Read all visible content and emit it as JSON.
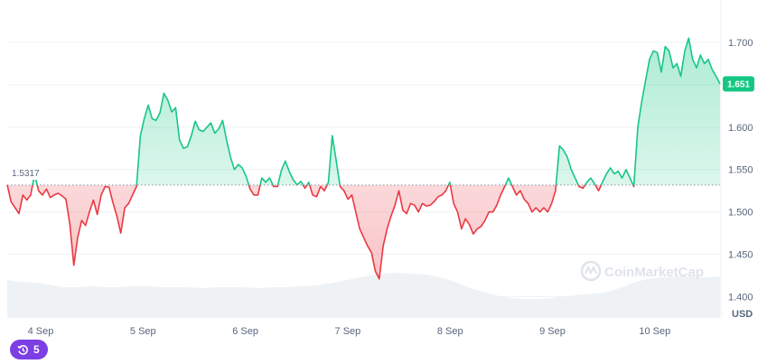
{
  "chart_data": {
    "type": "line",
    "x_labels": [
      "4 Sep",
      "5 Sep",
      "6 Sep",
      "7 Sep",
      "8 Sep",
      "9 Sep",
      "10 Sep"
    ],
    "y_ticks": [
      "1.700",
      "1.650",
      "1.600",
      "1.550",
      "1.500",
      "1.450",
      "1.400"
    ],
    "ylim": [
      1.375,
      1.75
    ],
    "reference_price": 1.5317,
    "reference_label": "1.5317",
    "current_price_label": "1.651",
    "currency_label": "USD",
    "above_color": "#16c784",
    "below_color": "#ea3943",
    "series": [
      {
        "values": [
          1.532,
          1.512,
          1.505,
          1.498,
          1.52,
          1.514,
          1.52,
          1.545,
          1.525,
          1.52,
          1.527,
          1.517,
          1.52,
          1.522,
          1.519,
          1.515,
          1.485,
          1.437,
          1.47,
          1.49,
          1.484,
          1.5,
          1.514,
          1.497,
          1.52,
          1.53,
          1.529,
          1.511,
          1.495,
          1.475,
          1.505,
          1.51,
          1.52,
          1.53,
          1.59,
          1.61,
          1.626,
          1.61,
          1.608,
          1.617,
          1.64,
          1.632,
          1.618,
          1.623,
          1.585,
          1.575,
          1.577,
          1.59,
          1.607,
          1.597,
          1.595,
          1.6,
          1.605,
          1.593,
          1.598,
          1.608,
          1.585,
          1.565,
          1.55,
          1.556,
          1.552,
          1.542,
          1.527,
          1.52,
          1.52,
          1.54,
          1.535,
          1.54,
          1.53,
          1.53,
          1.549,
          1.56,
          1.548,
          1.538,
          1.532,
          1.536,
          1.528,
          1.535,
          1.52,
          1.518,
          1.53,
          1.525,
          1.535,
          1.59,
          1.56,
          1.53,
          1.525,
          1.515,
          1.52,
          1.5,
          1.48,
          1.47,
          1.46,
          1.452,
          1.43,
          1.421,
          1.46,
          1.48,
          1.495,
          1.508,
          1.525,
          1.502,
          1.498,
          1.51,
          1.508,
          1.5,
          1.51,
          1.507,
          1.508,
          1.512,
          1.518,
          1.52,
          1.525,
          1.535,
          1.51,
          1.5,
          1.48,
          1.492,
          1.485,
          1.474,
          1.48,
          1.483,
          1.49,
          1.5,
          1.5,
          1.508,
          1.52,
          1.53,
          1.54,
          1.53,
          1.52,
          1.525,
          1.515,
          1.51,
          1.5,
          1.505,
          1.5,
          1.505,
          1.5,
          1.51,
          1.525,
          1.578,
          1.573,
          1.565,
          1.55,
          1.54,
          1.53,
          1.528,
          1.535,
          1.54,
          1.533,
          1.525,
          1.535,
          1.545,
          1.552,
          1.545,
          1.548,
          1.54,
          1.55,
          1.54,
          1.53,
          1.6,
          1.63,
          1.655,
          1.68,
          1.69,
          1.688,
          1.665,
          1.695,
          1.69,
          1.67,
          1.675,
          1.66,
          1.69,
          1.705,
          1.68,
          1.67,
          1.685,
          1.675,
          1.68,
          1.668,
          1.66,
          1.651
        ]
      }
    ]
  },
  "watermark": {
    "text": "CoinMarketCap",
    "icon": "coinmarketcap-logo-icon"
  },
  "history_badge": {
    "count": "5",
    "icon": "history-icon",
    "color": "#7b3fe4"
  }
}
